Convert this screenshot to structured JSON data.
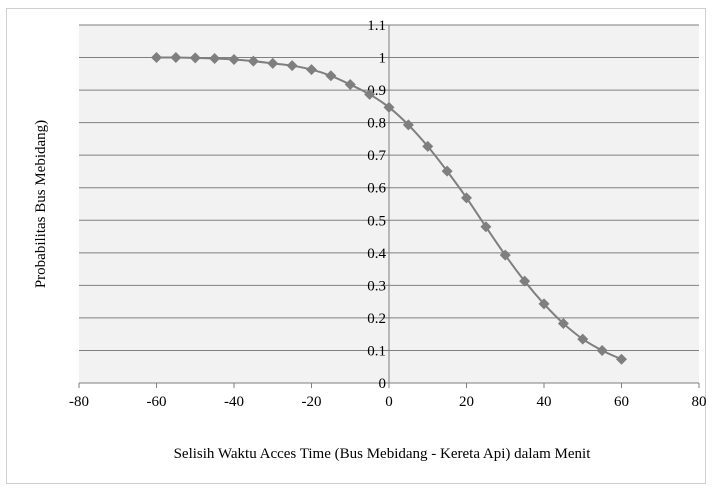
{
  "chart_data": {
    "type": "scatter",
    "title": "",
    "xlabel": "Selisih Waktu Acces Time (Bus Mebidang - Kereta Api) dalam Menit",
    "ylabel": "Probabilitas Bus Mebidang)",
    "xlim": [
      -80,
      80
    ],
    "ylim": [
      0,
      1.1
    ],
    "x_ticks": [
      -80,
      -60,
      -40,
      -20,
      0,
      20,
      40,
      60,
      80
    ],
    "x_tick_labels": [
      "-80",
      "-60",
      "-40",
      "-20",
      "0",
      "20",
      "40",
      "60",
      "80"
    ],
    "y_ticks": [
      0,
      0.1,
      0.2,
      0.3,
      0.4,
      0.5,
      0.6,
      0.7,
      0.8,
      0.9,
      1.0,
      1.1
    ],
    "y_tick_labels": [
      "0",
      "0.1",
      "0.2",
      "0.3",
      "0.4",
      "0.5",
      "0.6",
      "0.7",
      "0.8",
      "0.9",
      "1",
      "1.1"
    ],
    "grid": "horizontal",
    "legend": "none",
    "plot_background": "#f2f2f2",
    "grid_color": "#7f7f7f",
    "series": [
      {
        "marker": "diamond",
        "line": "smooth",
        "color": "#7f7f7f",
        "x": [
          -60,
          -55,
          -50,
          -45,
          -40,
          -35,
          -30,
          -25,
          -20,
          -15,
          -10,
          -5,
          0,
          5,
          10,
          15,
          20,
          25,
          30,
          35,
          40,
          45,
          50,
          55,
          60
        ],
        "values": [
          1.0,
          1.0,
          0.999,
          0.997,
          0.994,
          0.989,
          0.982,
          0.975,
          0.963,
          0.944,
          0.917,
          0.887,
          0.847,
          0.793,
          0.727,
          0.651,
          0.569,
          0.48,
          0.393,
          0.313,
          0.243,
          0.183,
          0.135,
          0.1,
          0.073
        ]
      }
    ]
  }
}
